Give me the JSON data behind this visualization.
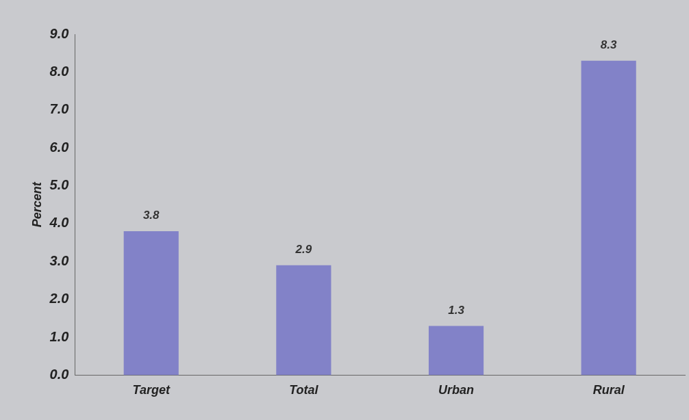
{
  "chart_data": {
    "type": "bar",
    "ylabel": "Percent",
    "categories": [
      "Target",
      "Total",
      "Urban",
      "Rural"
    ],
    "values": [
      3.8,
      2.9,
      1.3,
      8.3
    ],
    "color": "#8282c8",
    "ylim": [
      0,
      9
    ],
    "yticks": [
      {
        "value": 0,
        "label": "0.0"
      },
      {
        "value": 1,
        "label": "1.0"
      },
      {
        "value": 2,
        "label": "2.0"
      },
      {
        "value": 3,
        "label": "3.0"
      },
      {
        "value": 4,
        "label": "4.0"
      },
      {
        "value": 5,
        "label": "5.0"
      },
      {
        "value": 6,
        "label": "6.0"
      },
      {
        "value": 7,
        "label": "7.0"
      },
      {
        "value": 8,
        "label": "8.0"
      },
      {
        "value": 9,
        "label": "9.0"
      }
    ],
    "grid": false,
    "legend": false,
    "data_labels": true
  }
}
